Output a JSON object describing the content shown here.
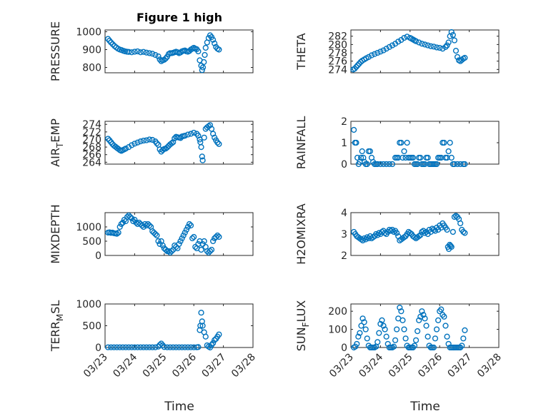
{
  "figure": {
    "title": "Figure 1 high",
    "x_label": "Time",
    "x_ticks": [
      "03/23",
      "03/24",
      "03/25",
      "03/26",
      "03/27",
      "03/28"
    ],
    "marker_color": "#0072BD",
    "marker": "circle-open",
    "grid": true,
    "minor_grid": true
  },
  "chart_data": [
    {
      "type": "scatter",
      "id": "pressure",
      "ylabel": "PRESSURE",
      "ylim": [
        770,
        1010
      ],
      "yticks": [
        800,
        900,
        1000
      ],
      "xlim": [
        0,
        5
      ],
      "x": [
        0.1,
        0.15,
        0.2,
        0.26,
        0.32,
        0.38,
        0.44,
        0.5,
        0.56,
        0.62,
        0.68,
        0.74,
        0.8,
        0.9,
        1.0,
        1.1,
        1.2,
        1.3,
        1.4,
        1.5,
        1.6,
        1.7,
        1.8,
        1.85,
        1.9,
        1.95,
        2.0,
        2.05,
        2.1,
        2.15,
        2.2,
        2.25,
        2.3,
        2.35,
        2.4,
        2.45,
        2.5,
        2.55,
        2.6,
        2.65,
        2.7,
        2.75,
        2.8,
        2.85,
        2.9,
        2.95,
        3.0,
        3.05,
        3.1,
        3.15,
        3.2,
        3.25,
        3.28,
        3.31,
        3.34,
        3.37,
        3.4,
        3.45,
        3.5,
        3.55,
        3.6,
        3.65,
        3.7,
        3.75,
        3.8,
        3.85
      ],
      "y": [
        960,
        950,
        940,
        930,
        920,
        912,
        905,
        900,
        897,
        893,
        890,
        888,
        887,
        885,
        888,
        890,
        885,
        887,
        883,
        880,
        877,
        870,
        862,
        845,
        835,
        840,
        843,
        850,
        860,
        875,
        880,
        880,
        882,
        885,
        888,
        885,
        880,
        884,
        890,
        893,
        895,
        890,
        888,
        892,
        900,
        905,
        910,
        905,
        902,
        890,
        840,
        810,
        785,
        800,
        830,
        870,
        910,
        940,
        965,
        980,
        970,
        955,
        935,
        915,
        905,
        900
      ]
    },
    {
      "type": "scatter",
      "id": "theta",
      "ylabel": "THETA",
      "ylim": [
        273.2,
        283.5
      ],
      "yticks": [
        274,
        276,
        278,
        280,
        282
      ],
      "xlim": [
        0,
        5
      ],
      "x": [
        0.08,
        0.13,
        0.18,
        0.23,
        0.28,
        0.33,
        0.38,
        0.45,
        0.52,
        0.6,
        0.7,
        0.8,
        0.9,
        1.0,
        1.1,
        1.2,
        1.3,
        1.4,
        1.5,
        1.6,
        1.7,
        1.8,
        1.9,
        2.0,
        2.05,
        2.1,
        2.15,
        2.2,
        2.3,
        2.4,
        2.5,
        2.6,
        2.7,
        2.8,
        2.9,
        3.0,
        3.1,
        3.2,
        3.25,
        3.3,
        3.35,
        3.4,
        3.45,
        3.5,
        3.55,
        3.6,
        3.65,
        3.7,
        3.75,
        3.8,
        3.85
      ],
      "y": [
        274,
        274.2,
        274.6,
        275,
        275.4,
        275.8,
        276.1,
        276.4,
        276.7,
        277,
        277.4,
        277.7,
        278,
        278.3,
        278.6,
        279,
        279.4,
        279.8,
        280.2,
        280.7,
        281.1,
        281.6,
        281.9,
        281.6,
        281.4,
        281.2,
        281,
        280.8,
        280.5,
        280.2,
        280,
        279.8,
        279.6,
        279.5,
        279.3,
        279.2,
        279,
        279.4,
        279.8,
        280.5,
        282,
        283,
        282.3,
        281,
        278.5,
        277,
        276.2,
        276,
        276.3,
        276.6,
        276.8
      ]
    },
    {
      "type": "scatter",
      "id": "air_temp",
      "ylabel": "AIR_TEMP",
      "ylim": [
        263.5,
        274.8
      ],
      "yticks": [
        264,
        266,
        268,
        270,
        272,
        274
      ],
      "xlim": [
        0,
        5
      ],
      "x": [
        0.1,
        0.15,
        0.2,
        0.25,
        0.3,
        0.35,
        0.4,
        0.45,
        0.5,
        0.55,
        0.6,
        0.65,
        0.7,
        0.8,
        0.9,
        1.0,
        1.1,
        1.2,
        1.3,
        1.4,
        1.5,
        1.6,
        1.7,
        1.75,
        1.8,
        1.85,
        1.9,
        1.95,
        2.0,
        2.05,
        2.1,
        2.15,
        2.2,
        2.25,
        2.3,
        2.35,
        2.4,
        2.45,
        2.5,
        2.55,
        2.6,
        2.65,
        2.7,
        2.8,
        2.9,
        3.0,
        3.1,
        3.15,
        3.2,
        3.22,
        3.25,
        3.28,
        3.3,
        3.35,
        3.4,
        3.45,
        3.5,
        3.55,
        3.6,
        3.65,
        3.7,
        3.75,
        3.8,
        3.85
      ],
      "y": [
        270.2,
        269.8,
        269.3,
        268.8,
        268.4,
        268.1,
        267.8,
        267.5,
        267.2,
        267,
        267.2,
        267.4,
        267.6,
        268,
        268.5,
        268.9,
        269.2,
        269.5,
        269.7,
        269.8,
        270,
        269.9,
        269.5,
        269,
        268.6,
        267.4,
        266.8,
        267.2,
        267.5,
        267.6,
        267.9,
        268.3,
        268.7,
        269,
        269.3,
        270.3,
        270.7,
        270.6,
        270.5,
        270.4,
        270.8,
        270.9,
        271,
        271.3,
        271.5,
        271.8,
        271.5,
        271,
        270,
        269.3,
        268,
        265.5,
        264.5,
        270.5,
        272.8,
        273.2,
        273.5,
        273.8,
        272.8,
        271.5,
        270.5,
        269.8,
        269.2,
        268.8
      ]
    },
    {
      "type": "scatter",
      "id": "rainfall",
      "ylabel": "RAINFALL",
      "ylim": [
        0,
        2
      ],
      "yticks": [
        0,
        1,
        2
      ],
      "xlim": [
        0,
        5
      ],
      "x": [
        0.1,
        0.14,
        0.18,
        0.22,
        0.26,
        0.3,
        0.34,
        0.38,
        0.42,
        0.46,
        0.5,
        0.55,
        0.6,
        0.65,
        0.7,
        0.75,
        0.8,
        0.85,
        0.9,
        1.0,
        1.1,
        1.2,
        1.3,
        1.4,
        1.5,
        1.55,
        1.6,
        1.65,
        1.7,
        1.75,
        1.8,
        1.85,
        1.9,
        1.95,
        2.0,
        2.05,
        2.1,
        2.15,
        2.2,
        2.25,
        2.3,
        2.35,
        2.4,
        2.45,
        2.5,
        2.55,
        2.6,
        2.65,
        2.7,
        2.75,
        2.8,
        2.85,
        2.9,
        2.95,
        3.0,
        3.05,
        3.1,
        3.15,
        3.2,
        3.25,
        3.3,
        3.35,
        3.4,
        3.45,
        3.5,
        3.6,
        3.7,
        3.8,
        3.85
      ],
      "y": [
        1.6,
        1,
        1,
        0.3,
        0,
        0.1,
        0.3,
        0.6,
        0.3,
        0.1,
        0,
        0,
        0.6,
        0.6,
        0.3,
        0.1,
        0,
        0,
        0,
        0,
        0,
        0,
        0,
        0,
        0.3,
        0.3,
        0.3,
        1,
        1,
        0.3,
        0.6,
        0.3,
        1,
        0.3,
        0.3,
        0.3,
        0.3,
        0,
        0,
        0,
        0.3,
        0.3,
        0,
        0,
        0,
        0.3,
        0.3,
        0,
        0,
        0,
        0,
        0,
        0,
        0.3,
        0.3,
        0.3,
        1,
        1,
        0.3,
        0.3,
        0.6,
        1,
        0.3,
        0,
        0,
        0,
        0,
        0,
        0
      ]
    },
    {
      "type": "scatter",
      "id": "mixdepth",
      "ylabel": "MIXDEPTH",
      "ylim": [
        0,
        1500
      ],
      "yticks": [
        0,
        500,
        1000
      ],
      "xlim": [
        0,
        5
      ],
      "x": [
        0.1,
        0.15,
        0.2,
        0.25,
        0.3,
        0.35,
        0.4,
        0.45,
        0.5,
        0.55,
        0.6,
        0.65,
        0.7,
        0.75,
        0.8,
        0.85,
        0.9,
        0.95,
        1.0,
        1.05,
        1.1,
        1.15,
        1.2,
        1.25,
        1.3,
        1.35,
        1.4,
        1.45,
        1.5,
        1.55,
        1.6,
        1.65,
        1.7,
        1.75,
        1.8,
        1.85,
        1.9,
        1.95,
        2.0,
        2.05,
        2.1,
        2.15,
        2.2,
        2.25,
        2.3,
        2.35,
        2.4,
        2.45,
        2.5,
        2.55,
        2.6,
        2.65,
        2.7,
        2.75,
        2.8,
        2.85,
        2.9,
        2.95,
        3.0,
        3.05,
        3.1,
        3.15,
        3.2,
        3.25,
        3.3,
        3.35,
        3.4,
        3.45,
        3.5,
        3.55,
        3.6,
        3.65,
        3.7,
        3.75,
        3.8,
        3.85
      ],
      "y": [
        800,
        810,
        790,
        800,
        780,
        770,
        760,
        800,
        1000,
        1100,
        1150,
        1250,
        1200,
        1350,
        1400,
        1350,
        1300,
        1200,
        1250,
        1150,
        1100,
        1150,
        1100,
        1050,
        1000,
        1100,
        1050,
        1100,
        1050,
        1000,
        850,
        800,
        750,
        700,
        500,
        400,
        500,
        350,
        250,
        200,
        150,
        150,
        100,
        150,
        200,
        350,
        300,
        250,
        400,
        500,
        600,
        700,
        800,
        900,
        1000,
        1100,
        1050,
        600,
        650,
        300,
        250,
        400,
        500,
        200,
        400,
        500,
        300,
        150,
        100,
        150,
        200,
        500,
        600,
        650,
        700,
        650
      ]
    },
    {
      "type": "scatter",
      "id": "h2omixra",
      "ylabel": "H2OMIXRA",
      "ylim": [
        2,
        4
      ],
      "yticks": [
        2,
        3,
        4
      ],
      "xlim": [
        0,
        5
      ],
      "x": [
        0.1,
        0.15,
        0.2,
        0.25,
        0.3,
        0.35,
        0.4,
        0.45,
        0.5,
        0.55,
        0.6,
        0.65,
        0.7,
        0.75,
        0.8,
        0.85,
        0.9,
        0.95,
        1.0,
        1.05,
        1.1,
        1.15,
        1.2,
        1.25,
        1.3,
        1.35,
        1.4,
        1.45,
        1.5,
        1.55,
        1.6,
        1.65,
        1.7,
        1.75,
        1.8,
        1.85,
        1.9,
        1.95,
        2.0,
        2.05,
        2.1,
        2.15,
        2.2,
        2.25,
        2.3,
        2.35,
        2.4,
        2.45,
        2.5,
        2.55,
        2.6,
        2.65,
        2.7,
        2.75,
        2.8,
        2.85,
        2.9,
        2.95,
        3.0,
        3.05,
        3.1,
        3.15,
        3.2,
        3.25,
        3.28,
        3.31,
        3.34,
        3.37,
        3.4,
        3.45,
        3.5,
        3.55,
        3.6,
        3.65,
        3.7,
        3.75,
        3.8,
        3.85
      ],
      "y": [
        3.1,
        3,
        2.9,
        2.85,
        2.8,
        2.75,
        2.7,
        2.8,
        2.75,
        2.85,
        2.8,
        2.9,
        2.8,
        2.85,
        2.9,
        3,
        2.95,
        3.05,
        3,
        3.1,
        3.15,
        3.05,
        3,
        3.1,
        3.2,
        3.15,
        3.2,
        3.1,
        3.15,
        3.05,
        2.9,
        2.7,
        2.75,
        2.8,
        2.85,
        2.9,
        3,
        3.1,
        3.05,
        3,
        2.9,
        2.85,
        2.8,
        2.85,
        2.9,
        2.95,
        3.1,
        3.15,
        3.05,
        3.1,
        3,
        3.2,
        3.1,
        3.25,
        3.2,
        3.15,
        3.3,
        3.2,
        3.4,
        3.3,
        3.5,
        3.4,
        3.3,
        3.2,
        2.4,
        2.3,
        2.5,
        2.45,
        2.4,
        3.1,
        3.8,
        3.85,
        3.8,
        3.7,
        3.5,
        3.2,
        3.1,
        3.05
      ]
    },
    {
      "type": "scatter",
      "id": "terr_msl",
      "ylabel": "TERR_MSL",
      "ylim": [
        0,
        1000
      ],
      "yticks": [
        0,
        500,
        1000
      ],
      "xlim": [
        0,
        5
      ],
      "x": [
        0.1,
        0.2,
        0.3,
        0.4,
        0.5,
        0.6,
        0.7,
        0.8,
        0.9,
        1.0,
        1.1,
        1.2,
        1.3,
        1.4,
        1.5,
        1.6,
        1.7,
        1.8,
        1.85,
        1.9,
        1.95,
        2.0,
        2.1,
        2.2,
        2.3,
        2.4,
        2.5,
        2.6,
        2.7,
        2.8,
        2.9,
        3.0,
        3.1,
        3.15,
        3.2,
        3.22,
        3.25,
        3.28,
        3.3,
        3.35,
        3.4,
        3.45,
        3.5,
        3.55,
        3.6,
        3.65,
        3.7,
        3.75,
        3.8,
        3.85
      ],
      "y": [
        5,
        5,
        5,
        5,
        5,
        5,
        5,
        5,
        5,
        5,
        5,
        5,
        5,
        5,
        5,
        5,
        5,
        20,
        60,
        90,
        50,
        10,
        5,
        5,
        5,
        5,
        5,
        5,
        5,
        5,
        5,
        5,
        5,
        10,
        400,
        500,
        800,
        600,
        500,
        350,
        250,
        50,
        20,
        0,
        60,
        100,
        170,
        200,
        250,
        300
      ]
    },
    {
      "type": "scatter",
      "id": "sun_flux",
      "ylabel": "SUN_FLUX",
      "ylim": [
        0,
        240
      ],
      "yticks": [
        0,
        100,
        200
      ],
      "xlim": [
        0,
        5
      ],
      "x": [
        0.1,
        0.15,
        0.2,
        0.25,
        0.3,
        0.35,
        0.4,
        0.45,
        0.5,
        0.55,
        0.6,
        0.65,
        0.7,
        0.75,
        0.8,
        0.85,
        0.9,
        0.95,
        1.0,
        1.05,
        1.1,
        1.15,
        1.2,
        1.25,
        1.3,
        1.35,
        1.4,
        1.45,
        1.5,
        1.55,
        1.6,
        1.65,
        1.7,
        1.75,
        1.8,
        1.85,
        1.9,
        1.95,
        2.0,
        2.05,
        2.1,
        2.15,
        2.2,
        2.25,
        2.3,
        2.35,
        2.4,
        2.45,
        2.5,
        2.55,
        2.6,
        2.65,
        2.7,
        2.75,
        2.8,
        2.85,
        2.9,
        2.95,
        3.0,
        3.05,
        3.1,
        3.15,
        3.2,
        3.25,
        3.3,
        3.35,
        3.4,
        3.45,
        3.5,
        3.55,
        3.6,
        3.65,
        3.7,
        3.75,
        3.8,
        3.85
      ],
      "y": [
        0,
        5,
        20,
        60,
        80,
        120,
        160,
        140,
        100,
        50,
        10,
        0,
        0,
        0,
        0,
        5,
        30,
        80,
        130,
        150,
        120,
        100,
        60,
        20,
        0,
        0,
        0,
        5,
        40,
        100,
        160,
        220,
        200,
        150,
        100,
        50,
        10,
        0,
        0,
        0,
        0,
        10,
        40,
        90,
        150,
        170,
        200,
        180,
        160,
        120,
        60,
        10,
        0,
        0,
        0,
        50,
        100,
        150,
        200,
        210,
        180,
        170,
        120,
        60,
        20,
        0,
        0,
        0,
        0,
        0,
        0,
        0,
        0,
        10,
        50,
        95
      ]
    }
  ]
}
